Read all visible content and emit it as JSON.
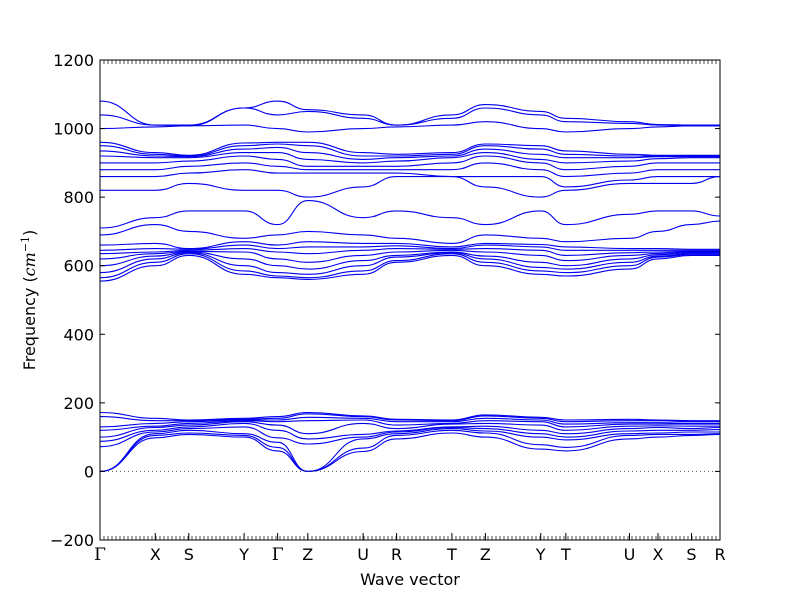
{
  "chart_data": {
    "type": "line",
    "title": "",
    "xlabel": "Wave vector",
    "ylabel_text": "Frequency (",
    "ylabel_unit_base": "cm",
    "ylabel_unit_exp": "−1",
    "ylabel_close": ")",
    "ylim": [
      -200,
      1200
    ],
    "yticks": [
      -200,
      0,
      200,
      400,
      600,
      800,
      1000,
      1200
    ],
    "ytick_labels": [
      "−200",
      "0",
      "200",
      "400",
      "600",
      "800",
      "1000",
      "1200"
    ],
    "xlim": [
      0,
      18.5
    ],
    "grid": false,
    "legend": "none",
    "line_color": "#0000ee",
    "zero_line_color": "#555555",
    "kpoints": [
      {
        "label": "Γ",
        "x": 0
      },
      {
        "label": "X",
        "x": 1.65
      },
      {
        "label": "S",
        "x": 2.65
      },
      {
        "label": "Y",
        "x": 4.3
      },
      {
        "label": "Γ",
        "x": 5.3
      },
      {
        "label": "Z",
        "x": 6.2
      },
      {
        "label": "U",
        "x": 7.85
      },
      {
        "label": "R",
        "x": 8.85
      },
      {
        "label": "T",
        "x": 10.5
      },
      {
        "label": "Z",
        "x": 11.5
      },
      {
        "label": "Y",
        "x": 13.15
      },
      {
        "label": "T",
        "x": 13.9
      },
      {
        "label": "U",
        "x": 15.8
      },
      {
        "label": "X",
        "x": 16.65
      },
      {
        "label": "S",
        "x": 17.65
      },
      {
        "label": "R",
        "x": 18.5
      }
    ],
    "series": [
      {
        "values": [
          0,
          98,
          108,
          100,
          60,
          0,
          58,
          95,
          112,
          100,
          65,
          60,
          95,
          100,
          105,
          108
        ]
      },
      {
        "values": [
          0,
          105,
          112,
          105,
          70,
          0,
          68,
          105,
          120,
          112,
          78,
          70,
          105,
          108,
          108,
          110
        ]
      },
      {
        "values": [
          0,
          110,
          120,
          110,
          85,
          0,
          95,
          110,
          125,
          118,
          100,
          92,
          110,
          112,
          115,
          115
        ]
      },
      {
        "values": [
          72,
          115,
          125,
          130,
          98,
          80,
          100,
          115,
          128,
          125,
          110,
          100,
          118,
          120,
          120,
          122
        ]
      },
      {
        "values": [
          88,
          120,
          130,
          140,
          120,
          95,
          108,
          118,
          130,
          132,
          120,
          110,
          125,
          128,
          125,
          128
        ]
      },
      {
        "values": [
          100,
          128,
          135,
          145,
          135,
          110,
          140,
          125,
          138,
          140,
          135,
          120,
          132,
          133,
          132,
          132
        ]
      },
      {
        "values": [
          120,
          132,
          140,
          148,
          145,
          148,
          150,
          135,
          140,
          148,
          145,
          130,
          138,
          138,
          138,
          138
        ]
      },
      {
        "values": [
          130,
          140,
          145,
          150,
          150,
          158,
          155,
          145,
          145,
          155,
          150,
          138,
          142,
          142,
          140,
          140
        ]
      },
      {
        "values": [
          160,
          148,
          148,
          152,
          155,
          168,
          160,
          150,
          148,
          162,
          155,
          145,
          148,
          148,
          145,
          145
        ]
      },
      {
        "values": [
          172,
          155,
          150,
          155,
          160,
          172,
          162,
          152,
          150,
          165,
          158,
          150,
          152,
          150,
          148,
          148
        ]
      },
      {
        "values": [
          555,
          600,
          630,
          575,
          565,
          560,
          575,
          610,
          630,
          600,
          575,
          570,
          590,
          620,
          630,
          630
        ]
      },
      {
        "values": [
          565,
          610,
          635,
          585,
          570,
          565,
          585,
          615,
          635,
          610,
          585,
          580,
          600,
          625,
          632,
          632
        ]
      },
      {
        "values": [
          580,
          620,
          638,
          600,
          580,
          575,
          600,
          625,
          638,
          620,
          595,
          590,
          610,
          628,
          635,
          635
        ]
      },
      {
        "values": [
          600,
          628,
          640,
          620,
          600,
          590,
          615,
          630,
          640,
          628,
          610,
          600,
          620,
          632,
          638,
          638
        ]
      },
      {
        "values": [
          620,
          635,
          642,
          640,
          620,
          610,
          630,
          640,
          645,
          640,
          630,
          615,
          630,
          636,
          640,
          640
        ]
      },
      {
        "values": [
          635,
          640,
          645,
          650,
          640,
          635,
          645,
          650,
          648,
          650,
          645,
          630,
          638,
          640,
          642,
          642
        ]
      },
      {
        "values": [
          645,
          650,
          648,
          660,
          650,
          655,
          655,
          658,
          650,
          660,
          655,
          645,
          645,
          645,
          645,
          645
        ]
      },
      {
        "values": [
          660,
          665,
          650,
          670,
          660,
          670,
          665,
          665,
          655,
          665,
          662,
          655,
          650,
          650,
          648,
          648
        ]
      },
      {
        "values": [
          690,
          720,
          700,
          680,
          690,
          700,
          690,
          680,
          665,
          690,
          680,
          670,
          680,
          700,
          720,
          730
        ]
      },
      {
        "values": [
          710,
          740,
          760,
          760,
          720,
          790,
          740,
          760,
          740,
          720,
          760,
          720,
          750,
          760,
          760,
          745
        ]
      },
      {
        "values": [
          820,
          820,
          840,
          820,
          820,
          800,
          830,
          860,
          860,
          830,
          800,
          820,
          840,
          840,
          840,
          860
        ]
      },
      {
        "values": [
          860,
          860,
          870,
          880,
          870,
          870,
          870,
          870,
          860,
          860,
          860,
          830,
          850,
          860,
          860,
          860
        ]
      },
      {
        "values": [
          880,
          880,
          890,
          900,
          890,
          880,
          880,
          880,
          880,
          900,
          880,
          860,
          870,
          880,
          880,
          880
        ]
      },
      {
        "values": [
          900,
          900,
          905,
          920,
          910,
          890,
          890,
          890,
          900,
          920,
          900,
          880,
          890,
          900,
          900,
          900
        ]
      },
      {
        "values": [
          920,
          915,
          915,
          930,
          930,
          910,
          900,
          905,
          915,
          930,
          910,
          900,
          905,
          912,
          915,
          915
        ]
      },
      {
        "values": [
          935,
          920,
          918,
          940,
          945,
          930,
          910,
          915,
          920,
          940,
          925,
          915,
          915,
          918,
          918,
          918
        ]
      },
      {
        "values": [
          950,
          925,
          920,
          950,
          955,
          950,
          920,
          920,
          925,
          950,
          940,
          925,
          920,
          920,
          920,
          920
        ]
      },
      {
        "values": [
          960,
          930,
          922,
          958,
          960,
          960,
          930,
          925,
          930,
          955,
          950,
          935,
          925,
          922,
          922,
          922
        ]
      },
      {
        "values": [
          1000,
          1005,
          1008,
          1010,
          1000,
          990,
          1000,
          1005,
          1010,
          1020,
          1000,
          990,
          1000,
          1005,
          1008,
          1008
        ]
      },
      {
        "values": [
          1040,
          1010,
          1008,
          1060,
          1040,
          1050,
          1030,
          1010,
          1030,
          1060,
          1040,
          1020,
          1015,
          1010,
          1008,
          1008
        ]
      },
      {
        "values": [
          1080,
          1010,
          1010,
          1060,
          1080,
          1055,
          1040,
          1010,
          1040,
          1070,
          1050,
          1030,
          1020,
          1012,
          1010,
          1010
        ]
      }
    ]
  }
}
